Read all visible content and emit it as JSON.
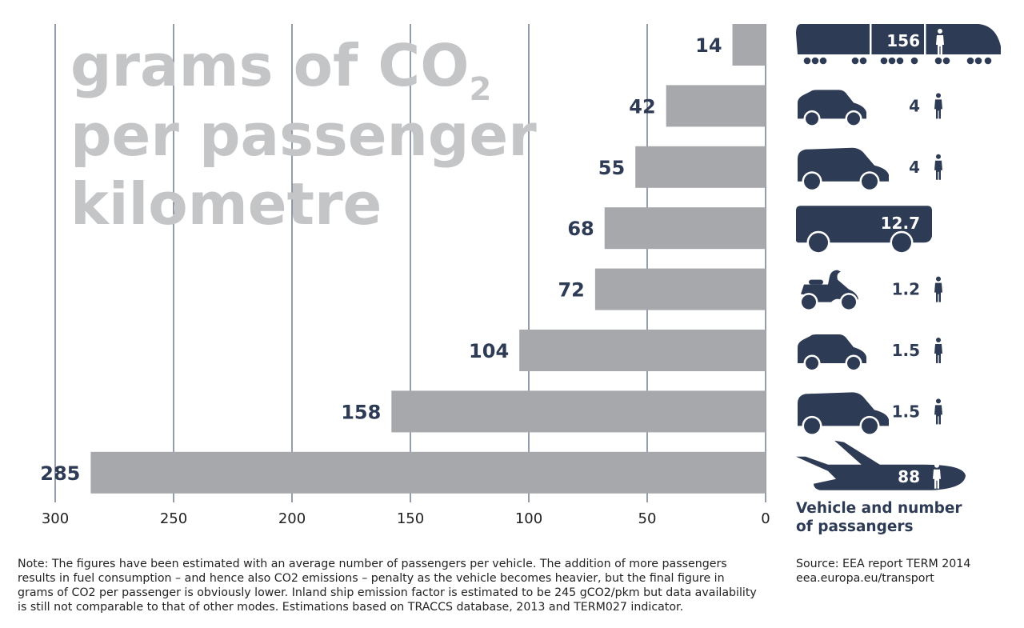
{
  "chart_data": {
    "type": "bar",
    "orientation": "horizontal",
    "title": "grams of CO2 per passenger kilometre",
    "title_lines": [
      "grams of CO",
      "per passenger",
      "kilometre"
    ],
    "title_subscript": "2",
    "categories": [
      "train",
      "small car",
      "medium car",
      "bus",
      "scooter",
      "small car",
      "medium car",
      "airplane"
    ],
    "values": [
      14,
      42,
      55,
      68,
      72,
      104,
      158,
      285
    ],
    "value_labels": [
      "14",
      "42",
      "55",
      "68",
      "72",
      "104",
      "158",
      "285"
    ],
    "passengers": [
      "156",
      "4",
      "4",
      "12.7",
      "1.2",
      "1.5",
      "1.5",
      "88"
    ],
    "icons": [
      "train-icon",
      "small-car-icon",
      "medium-car-icon",
      "bus-icon",
      "scooter-icon",
      "small-car-icon",
      "medium-car-icon",
      "airplane-icon"
    ],
    "xlim": [
      0,
      300
    ],
    "x_reversed": true,
    "xticks": [
      300,
      250,
      200,
      150,
      100,
      50,
      0
    ],
    "grid": true,
    "colors": {
      "bar": "#a7a8ac",
      "text": "#2e3b55",
      "grid": "#2e3b55",
      "title": "#c4c5c7"
    }
  },
  "legend_caption_lines": [
    "Vehicle and number",
    "of passangers"
  ],
  "note": "Note: The figures have been estimated with an average number of passengers per vehicle. The addition of more passengers results in fuel consumption – and hence also CO2 emissions – penalty as the vehicle becomes heavier, but the final figure in grams of CO2 per passenger is obviously lower. Inland ship emission factor is estimated to be 245 gCO2/pkm but data availability is still not comparable to that of other modes. Estimations based on TRACCS database, 2013 and TERM027 indicator.",
  "source_lines": [
    "Source: EEA report TERM 2014",
    "eea.europa.eu/transport"
  ]
}
